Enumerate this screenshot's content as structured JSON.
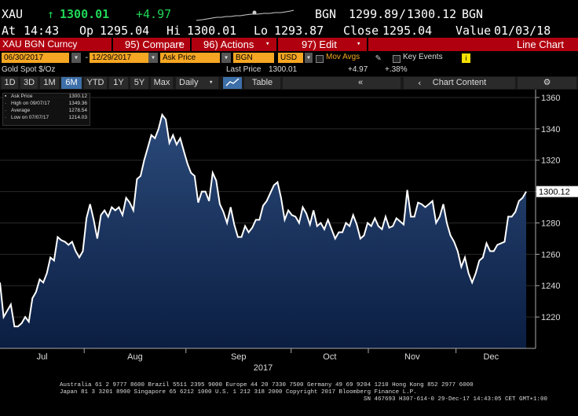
{
  "ticker": {
    "symbol": "XAU",
    "last": "1300.01",
    "change": "+4.97",
    "bid_src": "BGN",
    "bid": "1299.89",
    "ask": "1300.12",
    "ask_src": "BGN",
    "at_label": "At",
    "at_time": "14:43",
    "op_label": "Op",
    "open": "1295.04",
    "hi_label": "Hi",
    "high": "1300.01",
    "lo_label": "Lo",
    "low": "1293.87",
    "close_label": "Close",
    "close": "1295.04",
    "value_label": "Value",
    "value_date": "01/03/18"
  },
  "toolbar": {
    "security": "XAU BGN Curncy",
    "compare": "95) Compare",
    "actions": "96) Actions",
    "edit": "97) Edit",
    "line_chart": "Line Chart"
  },
  "options": {
    "start_date": "06/30/2017",
    "end_date": "12/29/2017",
    "field": "Ask Price",
    "source": "BGN",
    "currency": "USD",
    "mov_avgs": "Mov Avgs",
    "key_events": "Key Events",
    "info_icon": "i"
  },
  "infoline": {
    "name": "Gold Spot $/Oz",
    "last_price_label": "Last Price",
    "last_price": "1300.01",
    "change": "+4.97",
    "pct": "+.38%"
  },
  "tabs": {
    "periods": [
      "1D",
      "3D",
      "1M",
      "6M",
      "YTD",
      "1Y",
      "5Y",
      "Max"
    ],
    "selected": "6M",
    "frequency": "Daily",
    "table": "Table",
    "chart_content": "Chart Content"
  },
  "legend": {
    "ask_label": "Ask Price",
    "ask_value": "1300.12",
    "high_label": "High on 09/07/17",
    "high_value": "1349.36",
    "avg_label": "Average",
    "avg_value": "1278.54",
    "low_label": "Low on 07/07/17",
    "low_value": "1214.03"
  },
  "colors": {
    "accent": "#f5a623",
    "toolbar_red": "#b0000f",
    "area_top": "#2b4a7a",
    "area_bottom": "#0b1e42",
    "line": "#ffffff"
  },
  "chart_data": {
    "type": "area",
    "x_range": [
      "2017-06-30",
      "2017-12-29"
    ],
    "ylim": [
      1200,
      1365
    ],
    "y_ticks": [
      1220,
      1240,
      1260,
      1280,
      1300,
      1320,
      1340,
      1360
    ],
    "month_labels": [
      "Jul",
      "Aug",
      "Sep",
      "Oct",
      "Nov",
      "Dec"
    ],
    "year_label": "2017",
    "last_value_label": "1300.12",
    "series": [
      {
        "values": [
          1242,
          1220,
          1224,
          1228,
          1214,
          1214,
          1216,
          1220,
          1217,
          1232,
          1236,
          1244,
          1242,
          1248,
          1258,
          1256,
          1271,
          1269,
          1268,
          1266,
          1268,
          1262,
          1258,
          1262,
          1283,
          1292,
          1282,
          1270,
          1285,
          1288,
          1284,
          1290,
          1288,
          1290,
          1285,
          1296,
          1293,
          1288,
          1308,
          1310,
          1320,
          1328,
          1336,
          1334,
          1340,
          1349,
          1346,
          1331,
          1336,
          1330,
          1334,
          1326,
          1318,
          1312,
          1310,
          1293,
          1300,
          1300,
          1294,
          1312,
          1307,
          1292,
          1287,
          1280,
          1290,
          1279,
          1271,
          1271,
          1278,
          1274,
          1277,
          1282,
          1282,
          1291,
          1294,
          1299,
          1304,
          1306,
          1296,
          1282,
          1288,
          1285,
          1284,
          1280,
          1290,
          1286,
          1279,
          1288,
          1278,
          1280,
          1276,
          1282,
          1276,
          1270,
          1274,
          1274,
          1280,
          1278,
          1285,
          1279,
          1270,
          1272,
          1280,
          1278,
          1283,
          1278,
          1276,
          1284,
          1277,
          1278,
          1283,
          1281,
          1279,
          1301,
          1284,
          1284,
          1293,
          1292,
          1290,
          1292,
          1294,
          1280,
          1284,
          1292,
          1280,
          1272,
          1268,
          1262,
          1252,
          1258,
          1248,
          1242,
          1248,
          1256,
          1258,
          1267,
          1262,
          1262,
          1266,
          1267,
          1268,
          1284,
          1284,
          1287,
          1294,
          1296,
          1300
        ]
      }
    ]
  },
  "footer": {
    "line1": "Australia 61 2 9777 8600 Brazil 5511 2395 9000 Europe 44 20 7330 7500 Germany 49 69 9204 1210 Hong Kong 852 2977 6000",
    "line2": "Japan 81 3 3201 8900        Singapore 65 6212 1000        U.S. 1 212 318 2000              Copyright 2017 Bloomberg Finance L.P.",
    "line3": "SN 467693 H307-614-0 29-Dec-17 14:43:05 CET  GMT+1:00"
  }
}
